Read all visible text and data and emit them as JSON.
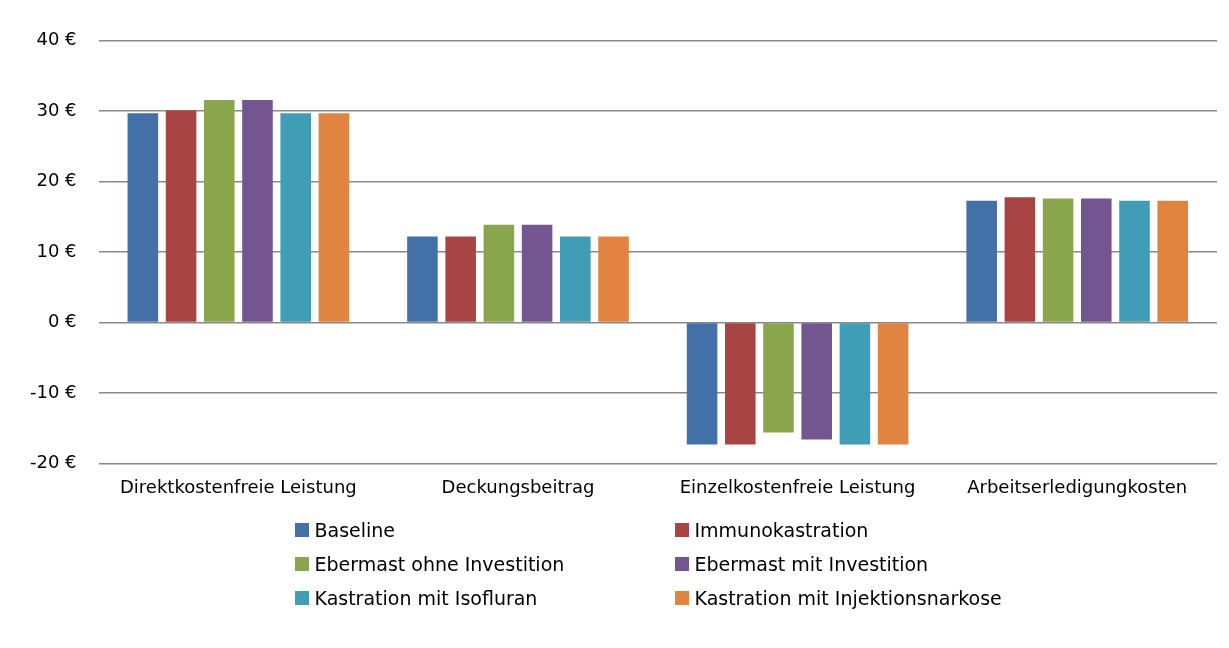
{
  "chart_data": {
    "type": "bar",
    "categories": [
      "Direktkostenfreie Leistung",
      "Deckungsbeitrag",
      "Einzelkostenfreie Leistung",
      "Arbeitserledigungkosten"
    ],
    "series": [
      {
        "name": "Baseline",
        "color": "#4470a8",
        "values": [
          29.7,
          12.2,
          -17.3,
          17.3
        ]
      },
      {
        "name": "Immunokastration",
        "color": "#a84544",
        "values": [
          30.1,
          12.2,
          -17.3,
          17.8
        ]
      },
      {
        "name": "Ebermast ohne Investition",
        "color": "#8aa64c",
        "values": [
          31.6,
          13.9,
          -15.6,
          17.6
        ]
      },
      {
        "name": "Ebermast mit Investition",
        "color": "#735690",
        "values": [
          31.6,
          13.9,
          -16.6,
          17.6
        ]
      },
      {
        "name": "Kastration mit Isofluran",
        "color": "#3f9db5",
        "values": [
          29.7,
          12.2,
          -17.3,
          17.3
        ]
      },
      {
        "name": "Kastration mit Injektionsnarkose",
        "color": "#e0843f",
        "values": [
          29.7,
          12.2,
          -17.3,
          17.3
        ]
      }
    ],
    "ylim": [
      -20,
      40
    ],
    "yticks": [
      {
        "value": -20,
        "label": "-20 €"
      },
      {
        "value": -10,
        "label": "-10 €"
      },
      {
        "value": 0,
        "label": "0 €"
      },
      {
        "value": 10,
        "label": "10 €"
      },
      {
        "value": 20,
        "label": "20 €"
      },
      {
        "value": 30,
        "label": "30 €"
      },
      {
        "value": 40,
        "label": "40 €"
      }
    ],
    "grid": "y",
    "legend": "bottom"
  }
}
